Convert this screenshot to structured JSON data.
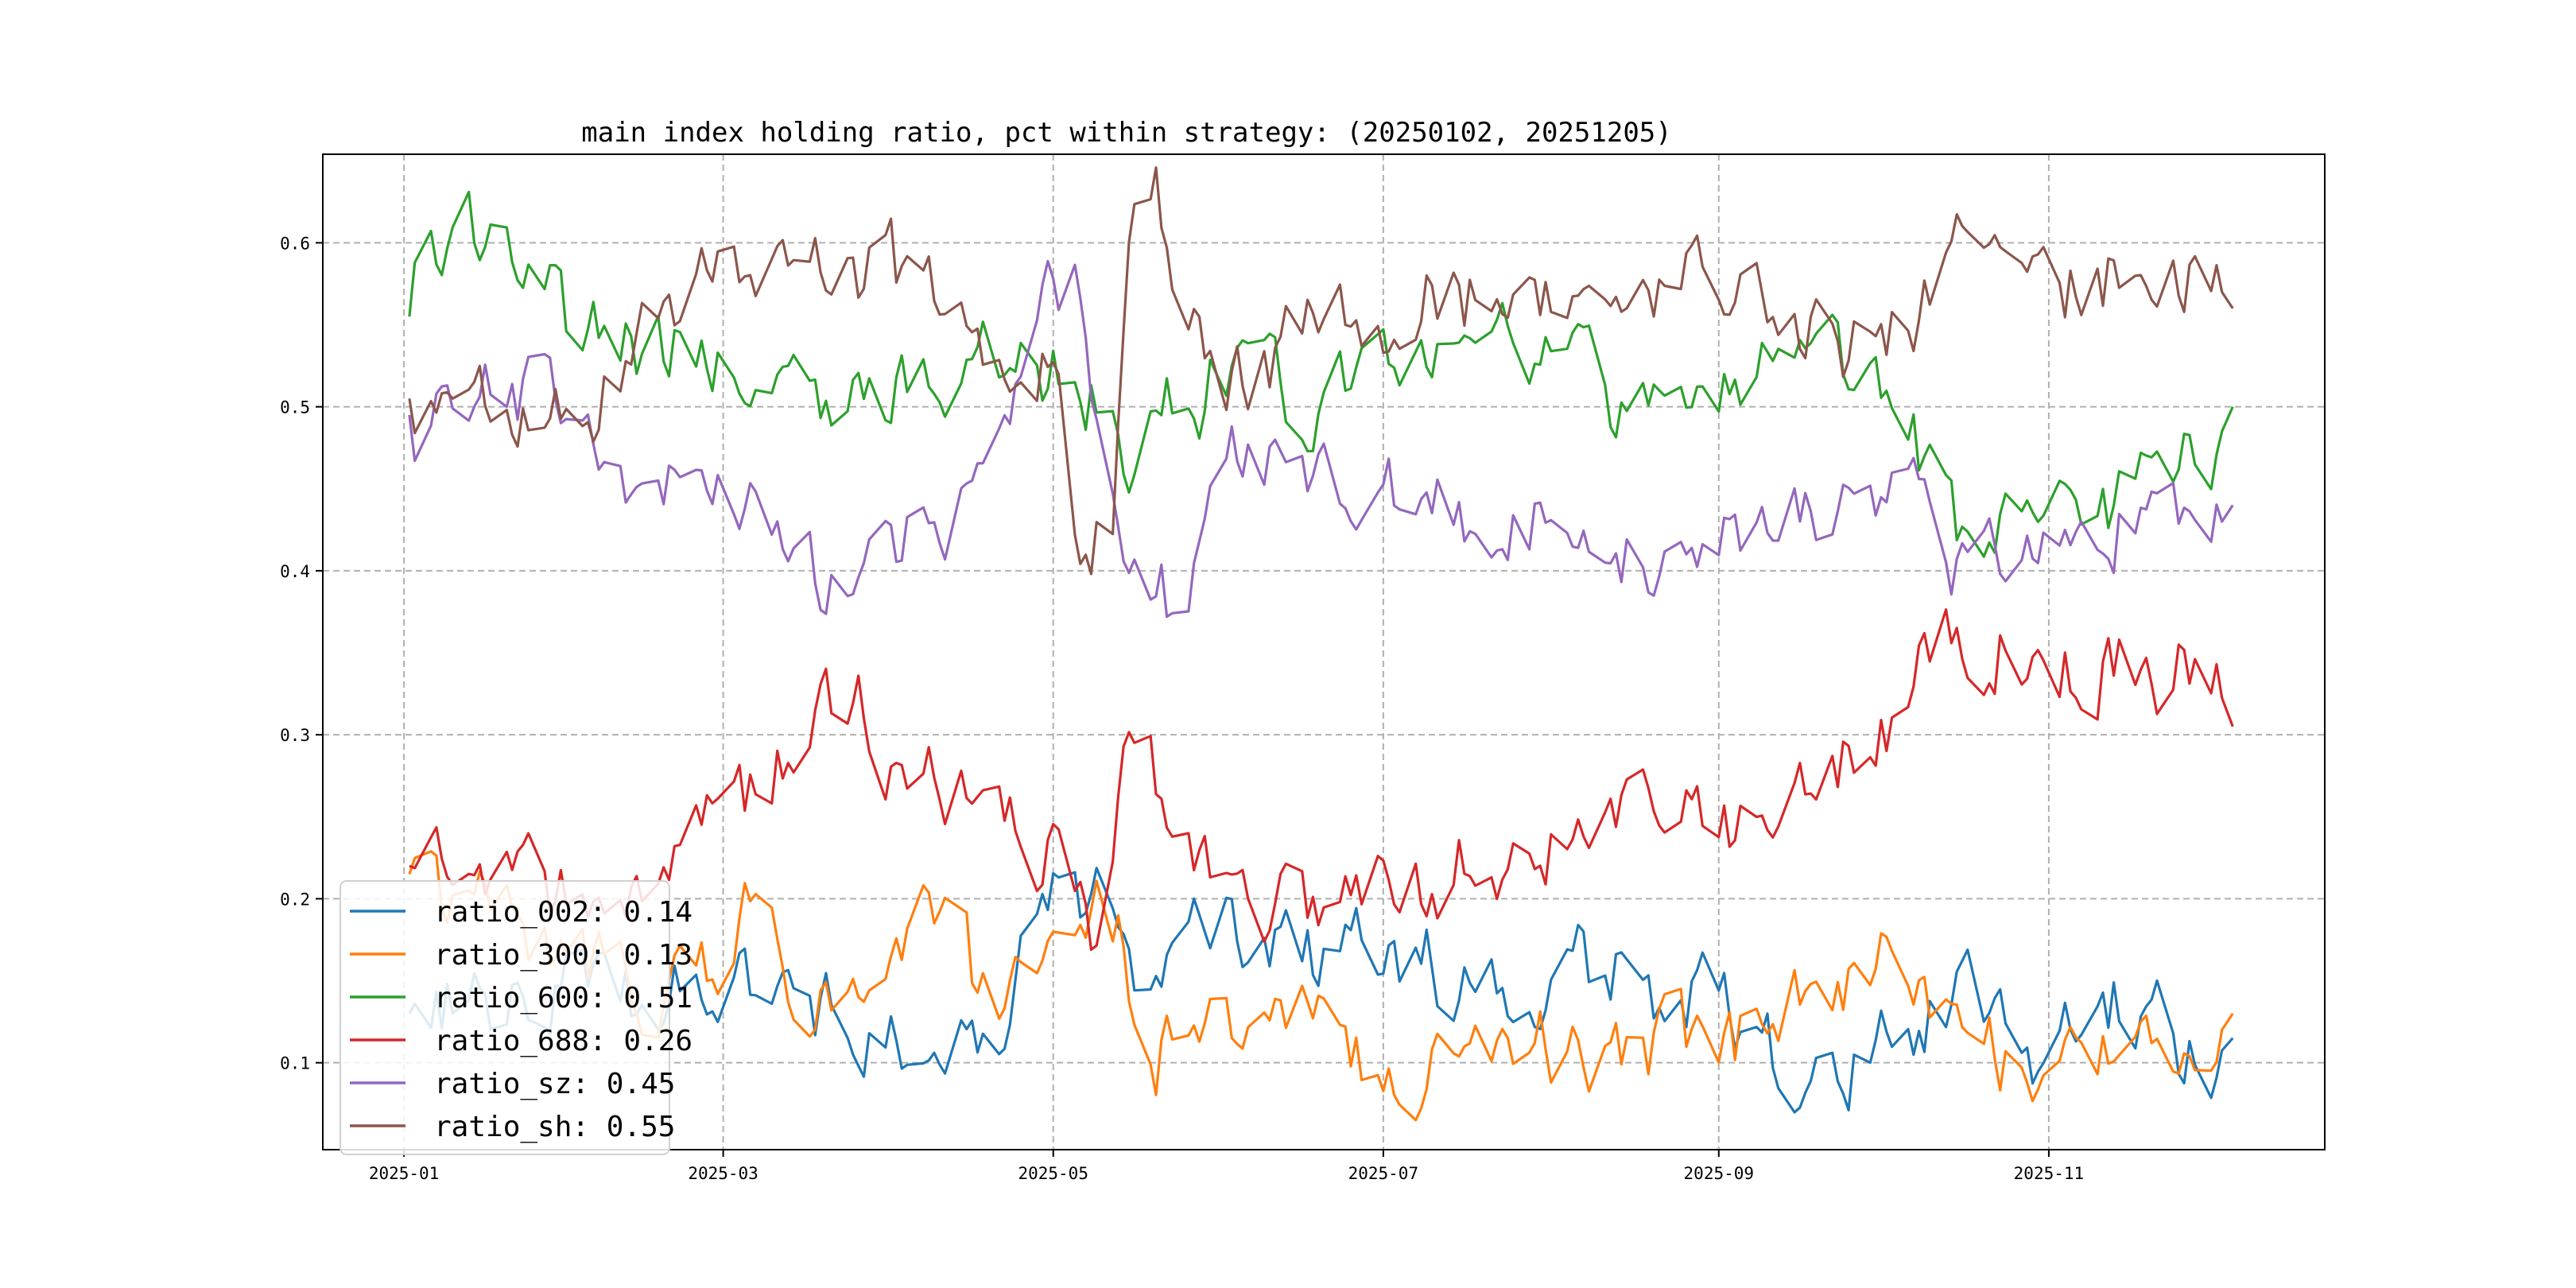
{
  "chart_data": {
    "type": "line",
    "title": "main index holding ratio, pct within strategy: (20250102, 20251205)",
    "xlabel": "",
    "ylabel": "",
    "x_range": [
      "2025-01-02",
      "2025-12-05"
    ],
    "xlim": [
      "2024-12-17",
      "2025-12-22"
    ],
    "ylim": [
      0.047,
      0.654
    ],
    "x_ticks": [
      "2025-01",
      "2025-03",
      "2025-05",
      "2025-07",
      "2025-09",
      "2025-11"
    ],
    "y_ticks": [
      0.1,
      0.2,
      0.3,
      0.4,
      0.5,
      0.6
    ],
    "grid": true,
    "legend_position": "lower-left",
    "series": [
      {
        "name": "ratio_002: 0.14",
        "color": "#1f77b4",
        "points": [
          [
            "2025-01-02",
            0.13
          ],
          [
            "2025-01-15",
            0.14
          ],
          [
            "2025-02-01",
            0.15
          ],
          [
            "2025-02-15",
            0.13
          ],
          [
            "2025-03-01",
            0.16
          ],
          [
            "2025-03-15",
            0.13
          ],
          [
            "2025-04-01",
            0.125
          ],
          [
            "2025-04-08",
            0.085
          ],
          [
            "2025-04-15",
            0.14
          ],
          [
            "2025-04-22",
            0.12
          ],
          [
            "2025-05-01",
            0.21
          ],
          [
            "2025-05-10",
            0.19
          ],
          [
            "2025-05-20",
            0.14
          ],
          [
            "2025-06-01",
            0.19
          ],
          [
            "2025-06-15",
            0.17
          ],
          [
            "2025-07-01",
            0.17
          ],
          [
            "2025-07-15",
            0.15
          ],
          [
            "2025-08-01",
            0.16
          ],
          [
            "2025-08-15",
            0.15
          ],
          [
            "2025-09-01",
            0.13
          ],
          [
            "2025-09-15",
            0.09
          ],
          [
            "2025-10-01",
            0.11
          ],
          [
            "2025-10-15",
            0.14
          ],
          [
            "2025-11-01",
            0.1
          ],
          [
            "2025-11-15",
            0.14
          ],
          [
            "2025-12-01",
            0.1
          ],
          [
            "2025-12-05",
            0.115
          ]
        ]
      },
      {
        "name": "ratio_300: 0.13",
        "color": "#ff7f0e",
        "points": [
          [
            "2025-01-02",
            0.215
          ],
          [
            "2025-01-15",
            0.19
          ],
          [
            "2025-02-01",
            0.17
          ],
          [
            "2025-02-15",
            0.14
          ],
          [
            "2025-03-01",
            0.16
          ],
          [
            "2025-03-05",
            0.2
          ],
          [
            "2025-03-15",
            0.14
          ],
          [
            "2025-04-01",
            0.14
          ],
          [
            "2025-04-08",
            0.19
          ],
          [
            "2025-04-20",
            0.13
          ],
          [
            "2025-05-01",
            0.14
          ],
          [
            "2025-05-10",
            0.2
          ],
          [
            "2025-05-20",
            0.11
          ],
          [
            "2025-06-01",
            0.11
          ],
          [
            "2025-06-15",
            0.13
          ],
          [
            "2025-07-01",
            0.1
          ],
          [
            "2025-07-15",
            0.09
          ],
          [
            "2025-08-01",
            0.11
          ],
          [
            "2025-08-15",
            0.11
          ],
          [
            "2025-09-01",
            0.1
          ],
          [
            "2025-09-15",
            0.15
          ],
          [
            "2025-10-01",
            0.16
          ],
          [
            "2025-10-15",
            0.11
          ],
          [
            "2025-11-01",
            0.1
          ],
          [
            "2025-11-15",
            0.1
          ],
          [
            "2025-12-01",
            0.11
          ],
          [
            "2025-12-05",
            0.13
          ]
        ]
      },
      {
        "name": "ratio_600: 0.51",
        "color": "#2ca02c",
        "points": [
          [
            "2025-01-02",
            0.555
          ],
          [
            "2025-01-08",
            0.6
          ],
          [
            "2025-01-15",
            0.61
          ],
          [
            "2025-02-01",
            0.55
          ],
          [
            "2025-02-15",
            0.54
          ],
          [
            "2025-03-01",
            0.53
          ],
          [
            "2025-03-15",
            0.505
          ],
          [
            "2025-04-01",
            0.5
          ],
          [
            "2025-04-15",
            0.53
          ],
          [
            "2025-05-01",
            0.52
          ],
          [
            "2025-05-15",
            0.48
          ],
          [
            "2025-06-01",
            0.52
          ],
          [
            "2025-06-15",
            0.5
          ],
          [
            "2025-07-01",
            0.52
          ],
          [
            "2025-07-15",
            0.54
          ],
          [
            "2025-08-01",
            0.53
          ],
          [
            "2025-08-15",
            0.5
          ],
          [
            "2025-09-01",
            0.5
          ],
          [
            "2025-09-15",
            0.53
          ],
          [
            "2025-10-01",
            0.52
          ],
          [
            "2025-10-15",
            0.43
          ],
          [
            "2025-11-01",
            0.44
          ],
          [
            "2025-11-15",
            0.44
          ],
          [
            "2025-12-01",
            0.47
          ],
          [
            "2025-12-05",
            0.5
          ]
        ]
      },
      {
        "name": "ratio_688: 0.26",
        "color": "#d62728",
        "points": [
          [
            "2025-01-02",
            0.22
          ],
          [
            "2025-01-15",
            0.21
          ],
          [
            "2025-02-01",
            0.2
          ],
          [
            "2025-02-15",
            0.22
          ],
          [
            "2025-03-01",
            0.24
          ],
          [
            "2025-03-15",
            0.3
          ],
          [
            "2025-03-25",
            0.32
          ],
          [
            "2025-04-01",
            0.28
          ],
          [
            "2025-04-15",
            0.27
          ],
          [
            "2025-05-01",
            0.22
          ],
          [
            "2025-05-10",
            0.18
          ],
          [
            "2025-05-15",
            0.28
          ],
          [
            "2025-05-25",
            0.25
          ],
          [
            "2025-06-01",
            0.2
          ],
          [
            "2025-06-15",
            0.19
          ],
          [
            "2025-07-01",
            0.21
          ],
          [
            "2025-07-15",
            0.22
          ],
          [
            "2025-08-01",
            0.23
          ],
          [
            "2025-08-15",
            0.25
          ],
          [
            "2025-09-01",
            0.24
          ],
          [
            "2025-09-15",
            0.28
          ],
          [
            "2025-10-01",
            0.3
          ],
          [
            "2025-10-15",
            0.37
          ],
          [
            "2025-11-01",
            0.35
          ],
          [
            "2025-11-15",
            0.34
          ],
          [
            "2025-12-01",
            0.34
          ],
          [
            "2025-12-05",
            0.305
          ]
        ]
      },
      {
        "name": "ratio_sz: 0.45",
        "color": "#9467bd",
        "points": [
          [
            "2025-01-02",
            0.495
          ],
          [
            "2025-01-15",
            0.52
          ],
          [
            "2025-02-01",
            0.5
          ],
          [
            "2025-02-15",
            0.45
          ],
          [
            "2025-03-01",
            0.47
          ],
          [
            "2025-03-15",
            0.4
          ],
          [
            "2025-04-01",
            0.41
          ],
          [
            "2025-04-15",
            0.45
          ],
          [
            "2025-05-01",
            0.56
          ],
          [
            "2025-05-05",
            0.58
          ],
          [
            "2025-05-15",
            0.39
          ],
          [
            "2025-05-25",
            0.38
          ],
          [
            "2025-06-01",
            0.47
          ],
          [
            "2025-06-15",
            0.46
          ],
          [
            "2025-07-01",
            0.44
          ],
          [
            "2025-07-15",
            0.43
          ],
          [
            "2025-08-01",
            0.43
          ],
          [
            "2025-08-15",
            0.41
          ],
          [
            "2025-09-01",
            0.43
          ],
          [
            "2025-09-15",
            0.44
          ],
          [
            "2025-10-01",
            0.46
          ],
          [
            "2025-10-15",
            0.4
          ],
          [
            "2025-11-01",
            0.41
          ],
          [
            "2025-11-15",
            0.43
          ],
          [
            "2025-12-01",
            0.42
          ],
          [
            "2025-12-05",
            0.44
          ]
        ]
      },
      {
        "name": "ratio_sh: 0.55",
        "color": "#8c564b",
        "points": [
          [
            "2025-01-02",
            0.505
          ],
          [
            "2025-01-15",
            0.5
          ],
          [
            "2025-02-01",
            0.49
          ],
          [
            "2025-02-15",
            0.55
          ],
          [
            "2025-03-01",
            0.57
          ],
          [
            "2025-03-15",
            0.6
          ],
          [
            "2025-04-01",
            0.58
          ],
          [
            "2025-04-15",
            0.55
          ],
          [
            "2025-05-01",
            0.54
          ],
          [
            "2025-05-05",
            0.43
          ],
          [
            "2025-05-12",
            0.42
          ],
          [
            "2025-05-15",
            0.6
          ],
          [
            "2025-05-20",
            0.62
          ],
          [
            "2025-06-01",
            0.52
          ],
          [
            "2025-06-15",
            0.54
          ],
          [
            "2025-07-01",
            0.56
          ],
          [
            "2025-07-15",
            0.57
          ],
          [
            "2025-08-01",
            0.56
          ],
          [
            "2025-08-15",
            0.59
          ],
          [
            "2025-09-01",
            0.57
          ],
          [
            "2025-09-15",
            0.56
          ],
          [
            "2025-10-01",
            0.53
          ],
          [
            "2025-10-15",
            0.59
          ],
          [
            "2025-11-01",
            0.57
          ],
          [
            "2025-11-15",
            0.58
          ],
          [
            "2025-12-01",
            0.58
          ],
          [
            "2025-12-05",
            0.56
          ]
        ]
      }
    ]
  }
}
